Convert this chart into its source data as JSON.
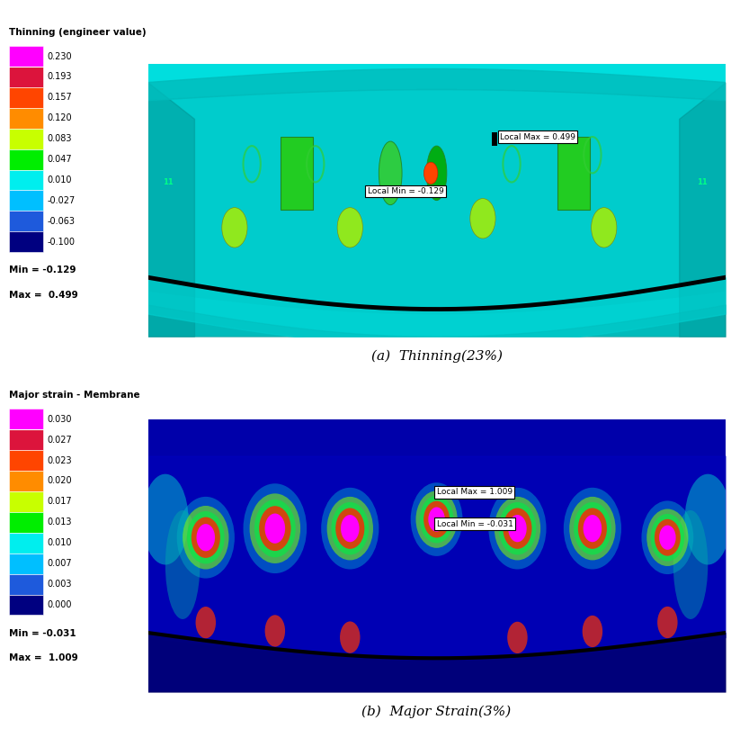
{
  "panel_a": {
    "title": "Thinning (engineer value)",
    "caption": "(a)  Thinning(23%)",
    "colorbar_labels": [
      "0.230",
      "0.193",
      "0.157",
      "0.120",
      "0.083",
      "0.047",
      "0.010",
      "-0.027",
      "-0.063",
      "-0.100"
    ],
    "colorbar_colors": [
      "#ff00ff",
      "#dc143c",
      "#ff4500",
      "#ff8c00",
      "#c8ff00",
      "#00ee00",
      "#00eeee",
      "#00bfff",
      "#1e5adc",
      "#000080"
    ],
    "min_label": "Min = -0.129",
    "max_label": "Max =  0.499",
    "local_max_text": "Local Max = 0.499",
    "local_min_text": "Local Min = -0.129"
  },
  "panel_b": {
    "title": "Major strain - Membrane",
    "caption": "(b)  Major Strain(3%)",
    "colorbar_labels": [
      "0.030",
      "0.027",
      "0.023",
      "0.020",
      "0.017",
      "0.013",
      "0.010",
      "0.007",
      "0.003",
      "0.000"
    ],
    "colorbar_colors": [
      "#ff00ff",
      "#dc143c",
      "#ff4500",
      "#ff8c00",
      "#c8ff00",
      "#00ee00",
      "#00eeee",
      "#00bfff",
      "#1e5adc",
      "#000080"
    ],
    "min_label": "Min = -0.031",
    "max_label": "Max =  1.009",
    "local_max_text": "Local Max = 1.009",
    "local_min_text": "Local Min = -0.031"
  },
  "figure_bg": "#ffffff",
  "thinning_bg": "#00dede",
  "thinning_panel_top": "#00d0d0",
  "thinning_panel_darker": "#009999",
  "strain_bg": "#0000bb",
  "strain_dark": "#000088"
}
